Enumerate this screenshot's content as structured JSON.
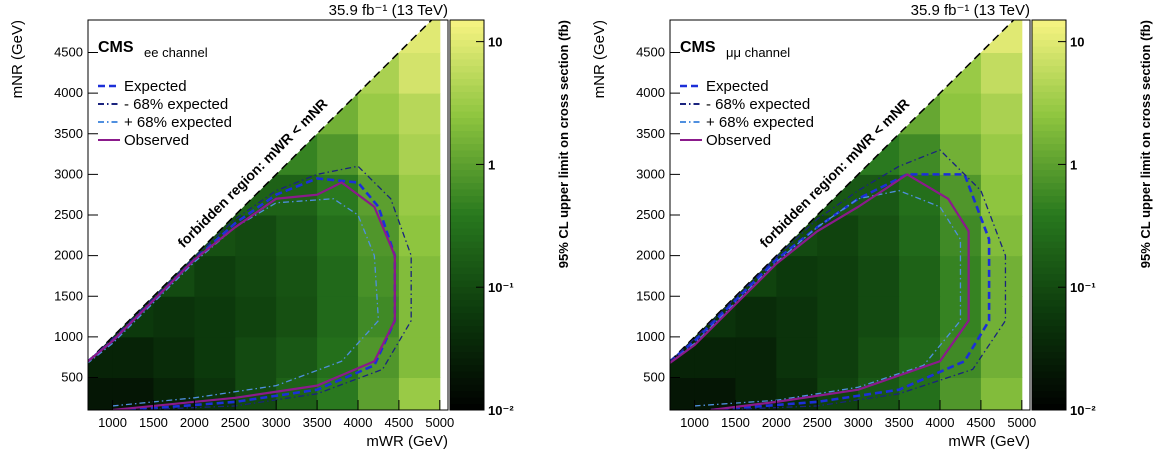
{
  "chart_data": [
    {
      "type": "heatmap",
      "lumi": "35.9 fb⁻¹ (13 TeV)",
      "experiment": "CMS",
      "channel": "ee channel",
      "x_label": "mWR (GeV)",
      "y_label": "mNR (GeV)",
      "z_label": "95% CL upper limit on cross section (fb)",
      "forbidden_label": "forbidden region: mWR < mNR",
      "xlim": [
        700,
        5100
      ],
      "ylim": [
        100,
        4900
      ],
      "zlim": [
        0.01,
        15
      ],
      "log_z": true,
      "xticks": [
        1000,
        1500,
        2000,
        2500,
        3000,
        3500,
        4000,
        4500,
        5000
      ],
      "yticks": [
        500,
        1000,
        1500,
        2000,
        2500,
        3000,
        3500,
        4000,
        4500
      ],
      "zticks": [
        {
          "value": 0.01,
          "label": "10⁻²"
        },
        {
          "value": 0.1,
          "label": "10⁻¹"
        },
        1,
        10
      ],
      "x_bins": [
        700,
        1000,
        1500,
        2000,
        2500,
        3000,
        3500,
        4000,
        4500,
        5000
      ],
      "y_bins": [
        0,
        500,
        1000,
        1500,
        2000,
        2500,
        3000,
        3500,
        4000,
        4500,
        5000
      ],
      "z": [
        [
          0.02,
          0.02,
          0.03,
          0.05,
          0.1,
          0.2,
          0.4,
          1,
          3
        ],
        [
          0.03,
          0.03,
          0.04,
          0.06,
          0.1,
          0.15,
          0.3,
          0.8,
          2
        ],
        [
          null,
          0.06,
          0.05,
          0.06,
          0.08,
          0.12,
          0.25,
          0.6,
          2
        ],
        [
          null,
          null,
          0.1,
          0.07,
          0.09,
          0.13,
          0.25,
          0.7,
          2
        ],
        [
          null,
          null,
          null,
          0.12,
          0.1,
          0.15,
          0.3,
          0.8,
          2.5
        ],
        [
          null,
          null,
          null,
          null,
          0.2,
          0.2,
          0.4,
          1,
          3
        ],
        [
          null,
          null,
          null,
          null,
          null,
          0.5,
          0.8,
          2,
          4
        ],
        [
          null,
          null,
          null,
          null,
          null,
          null,
          1.5,
          3,
          5
        ],
        [
          null,
          null,
          null,
          null,
          null,
          null,
          null,
          4,
          8
        ],
        [
          null,
          null,
          null,
          null,
          null,
          null,
          null,
          null,
          10
        ]
      ],
      "series": [
        {
          "name": "Expected",
          "color": "#1c2fd8",
          "dash": "dashed",
          "x": [
            1200,
            2500,
            3500,
            4200,
            4450,
            4450,
            4250,
            4000,
            3500,
            3000,
            2500,
            2000,
            1500,
            1000,
            700
          ],
          "y": [
            100,
            200,
            350,
            650,
            1200,
            2000,
            2600,
            2900,
            2950,
            2750,
            2400,
            1950,
            1450,
            950,
            700
          ]
        },
        {
          "name": "- 68% expected",
          "color": "#1a237e",
          "dash": "dashdot",
          "x": [
            1300,
            2500,
            3500,
            4300,
            4650,
            4650,
            4400,
            4000,
            3500,
            3000,
            2500,
            2000,
            1500,
            1000,
            700
          ],
          "y": [
            100,
            150,
            300,
            600,
            1200,
            2000,
            2700,
            3100,
            3000,
            2800,
            2450,
            1980,
            1480,
            980,
            700
          ]
        },
        {
          "name": "+ 68% expected",
          "color": "#4f8fdf",
          "dash": "dashdot",
          "x": [
            1000,
            2000,
            3000,
            3800,
            4250,
            4200,
            4000,
            3700,
            3000,
            2500,
            2000,
            1500,
            1000,
            700
          ],
          "y": [
            150,
            250,
            400,
            700,
            1200,
            2000,
            2500,
            2700,
            2650,
            2350,
            1920,
            1420,
            920,
            680
          ]
        },
        {
          "name": "Observed",
          "color": "#8b1a8b",
          "dash": "solid",
          "x": [
            1000,
            1500,
            2500,
            3500,
            4200,
            4450,
            4450,
            4200,
            3800,
            3500,
            3000,
            2500,
            2000,
            1500,
            1000,
            700
          ],
          "y": [
            100,
            150,
            250,
            400,
            700,
            1200,
            2000,
            2600,
            2900,
            2750,
            2700,
            2350,
            1950,
            1450,
            950,
            700
          ]
        }
      ]
    },
    {
      "type": "heatmap",
      "lumi": "35.9 fb⁻¹ (13 TeV)",
      "experiment": "CMS",
      "channel": "μμ channel",
      "x_label": "mWR (GeV)",
      "y_label": "mNR (GeV)",
      "z_label": "95% CL upper limit on cross section (fb)",
      "forbidden_label": "forbidden region: mWR < mNR",
      "xlim": [
        700,
        5100
      ],
      "ylim": [
        100,
        4900
      ],
      "zlim": [
        0.01,
        15
      ],
      "log_z": true,
      "xticks": [
        1000,
        1500,
        2000,
        2500,
        3000,
        3500,
        4000,
        4500,
        5000
      ],
      "yticks": [
        500,
        1000,
        1500,
        2000,
        2500,
        3000,
        3500,
        4000,
        4500
      ],
      "zticks": [
        {
          "value": 0.01,
          "label": "10⁻²"
        },
        {
          "value": 0.1,
          "label": "10⁻¹"
        },
        1,
        10
      ],
      "x_bins": [
        700,
        1000,
        1500,
        2000,
        2500,
        3000,
        3500,
        4000,
        4500,
        5000
      ],
      "y_bins": [
        0,
        500,
        1000,
        1500,
        2000,
        2500,
        3000,
        3500,
        4000,
        4500,
        5000
      ],
      "z": [
        [
          0.02,
          0.02,
          0.03,
          0.04,
          0.08,
          0.15,
          0.3,
          0.8,
          2
        ],
        [
          0.03,
          0.03,
          0.03,
          0.05,
          0.07,
          0.12,
          0.25,
          0.6,
          1.5
        ],
        [
          null,
          0.05,
          0.04,
          0.05,
          0.07,
          0.1,
          0.2,
          0.5,
          1.5
        ],
        [
          null,
          null,
          0.08,
          0.06,
          0.07,
          0.1,
          0.2,
          0.5,
          1.5
        ],
        [
          null,
          null,
          null,
          0.1,
          0.08,
          0.12,
          0.25,
          0.6,
          2
        ],
        [
          null,
          null,
          null,
          null,
          0.15,
          0.15,
          0.3,
          0.8,
          2.5
        ],
        [
          null,
          null,
          null,
          null,
          null,
          0.4,
          0.6,
          1.5,
          3
        ],
        [
          null,
          null,
          null,
          null,
          null,
          null,
          1.2,
          2.5,
          4
        ],
        [
          null,
          null,
          null,
          null,
          null,
          null,
          null,
          3,
          6
        ],
        [
          null,
          null,
          null,
          null,
          null,
          null,
          null,
          null,
          10
        ]
      ],
      "series": [
        {
          "name": "Expected",
          "color": "#1c2fd8",
          "dash": "dashed",
          "x": [
            1200,
            2500,
            3500,
            4300,
            4600,
            4600,
            4300,
            3600,
            3000,
            2500,
            2000,
            1500,
            1000,
            700
          ],
          "y": [
            100,
            200,
            350,
            700,
            1200,
            2200,
            3000,
            3000,
            2700,
            2350,
            1950,
            1450,
            950,
            700
          ]
        },
        {
          "name": "- 68% expected",
          "color": "#1a237e",
          "dash": "dashdot",
          "x": [
            1300,
            2500,
            3500,
            4400,
            4800,
            4800,
            4500,
            4000,
            3500,
            3000,
            2500,
            2000,
            1500,
            1000,
            700
          ],
          "y": [
            100,
            150,
            300,
            600,
            1200,
            2000,
            2800,
            3300,
            3100,
            2800,
            2450,
            1980,
            1480,
            980,
            700
          ]
        },
        {
          "name": "+ 68% expected",
          "color": "#4f8fdf",
          "dash": "dashdot",
          "x": [
            1000,
            2000,
            3000,
            3800,
            4250,
            4250,
            4000,
            3500,
            3000,
            2500,
            2000,
            1500,
            1000,
            700
          ],
          "y": [
            150,
            220,
            380,
            650,
            1200,
            2200,
            2600,
            2800,
            2700,
            2350,
            1920,
            1420,
            920,
            680
          ]
        },
        {
          "name": "Observed",
          "color": "#8b1a8b",
          "dash": "solid",
          "x": [
            1200,
            2000,
            3000,
            4000,
            4350,
            4350,
            4100,
            3600,
            3000,
            2500,
            2000,
            1500,
            1000,
            700
          ],
          "y": [
            100,
            200,
            350,
            700,
            1200,
            2300,
            2700,
            3000,
            2600,
            2300,
            1900,
            1400,
            900,
            680
          ]
        }
      ]
    }
  ]
}
